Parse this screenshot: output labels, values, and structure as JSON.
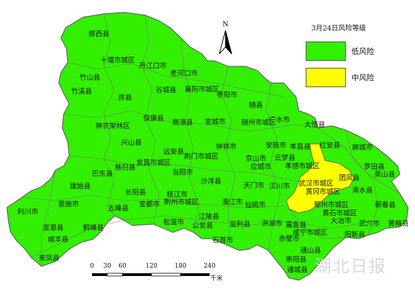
{
  "map": {
    "colors": {
      "low": "#32f000",
      "medium": "#ffff00",
      "border": "#606060",
      "background": "#ffffff"
    },
    "labels": [
      "郧西县",
      "十堰市城区",
      "丹江口市",
      "老河口市",
      "竹山县",
      "竹溪县",
      "房县",
      "谷城县",
      "襄阳市城区",
      "枣阳市",
      "随县",
      "神农架林区",
      "保康县",
      "南漳县",
      "宜城市",
      "随州市城区",
      "广水市",
      "大悟县",
      "兴山县",
      "红安县",
      "麻城市",
      "巴东县",
      "秭归县",
      "宜昌市城区",
      "远安县",
      "荆门市城区",
      "钟祥市",
      "京山市",
      "安陆市",
      "孝昌县",
      "孝感市城区",
      "云梦县",
      "应城市",
      "罗田县",
      "英山县",
      "建始县",
      "长阳县",
      "当阳市",
      "沙洋县",
      "天门市",
      "汉川市",
      "武汉市城区",
      "团风县",
      "浠水县",
      "黄冈市城区",
      "利川市",
      "恩施市",
      "五峰县",
      "宜都市",
      "枝江市",
      "荆州市城区",
      "江陵县",
      "潜江市",
      "仙桃市",
      "鄂州市城区",
      "黄石市城区",
      "大冶市",
      "蕲春县",
      "武穴市",
      "黄梅县",
      "宣恩县",
      "鹤峰县",
      "松滋市",
      "公安县",
      "监利县",
      "洪湖市",
      "嘉鱼县",
      "咸宁市城区",
      "阳新县",
      "石首市",
      "咸丰县",
      "来凤县",
      "赤壁市",
      "通山县",
      "崇阳县",
      "通城县"
    ]
  },
  "legend": {
    "title": "3月24日风险等级",
    "items": [
      {
        "label": "低风险"
      },
      {
        "label": "中风险"
      }
    ]
  },
  "north_arrow": {
    "label": "N"
  },
  "scale_bar": {
    "ticks": [
      "0",
      "30",
      "60",
      "120",
      "180",
      "240"
    ],
    "unit": "千米"
  },
  "watermark": "湖北日报"
}
